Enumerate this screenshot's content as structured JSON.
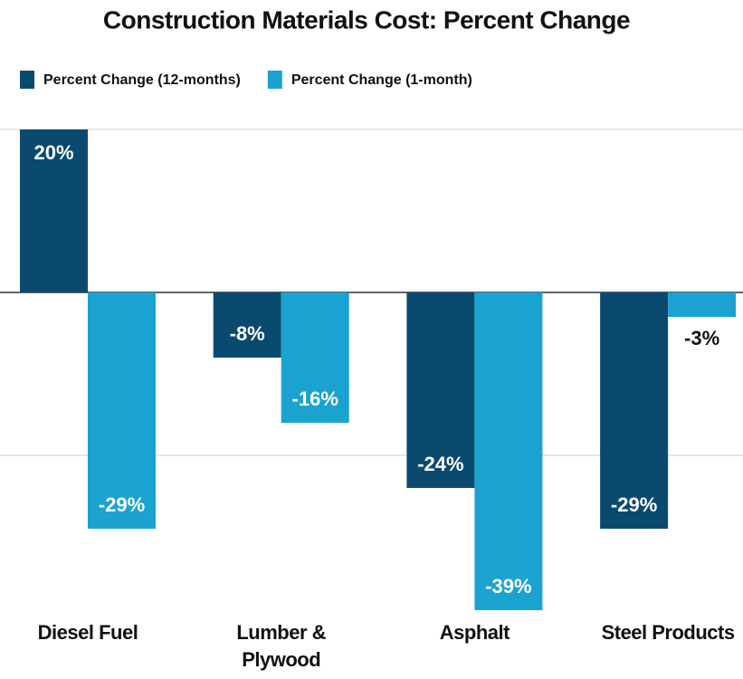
{
  "chart_data": {
    "type": "bar",
    "title": "Construction Materials Cost: Percent Change",
    "categories": [
      "Diesel Fuel",
      "Lumber & Plywood",
      "Asphalt",
      "Steel Products"
    ],
    "series": [
      {
        "name": "Percent Change (12-months)",
        "color": "#0b4a6f",
        "values": [
          20,
          -8,
          -24,
          -29
        ],
        "value_labels": [
          "20%",
          "-8%",
          "-24%",
          "-29%"
        ]
      },
      {
        "name": "Percent Change (1-month)",
        "color": "#1aa3d1",
        "values": [
          -29,
          -16,
          -39,
          -3
        ],
        "value_labels": [
          "-29%",
          "-16%",
          "-39%",
          "-3%"
        ]
      }
    ],
    "ylim": [
      -40,
      20
    ],
    "yticks": [
      -20,
      0,
      20
    ],
    "grid": true,
    "legend": "top-left"
  }
}
